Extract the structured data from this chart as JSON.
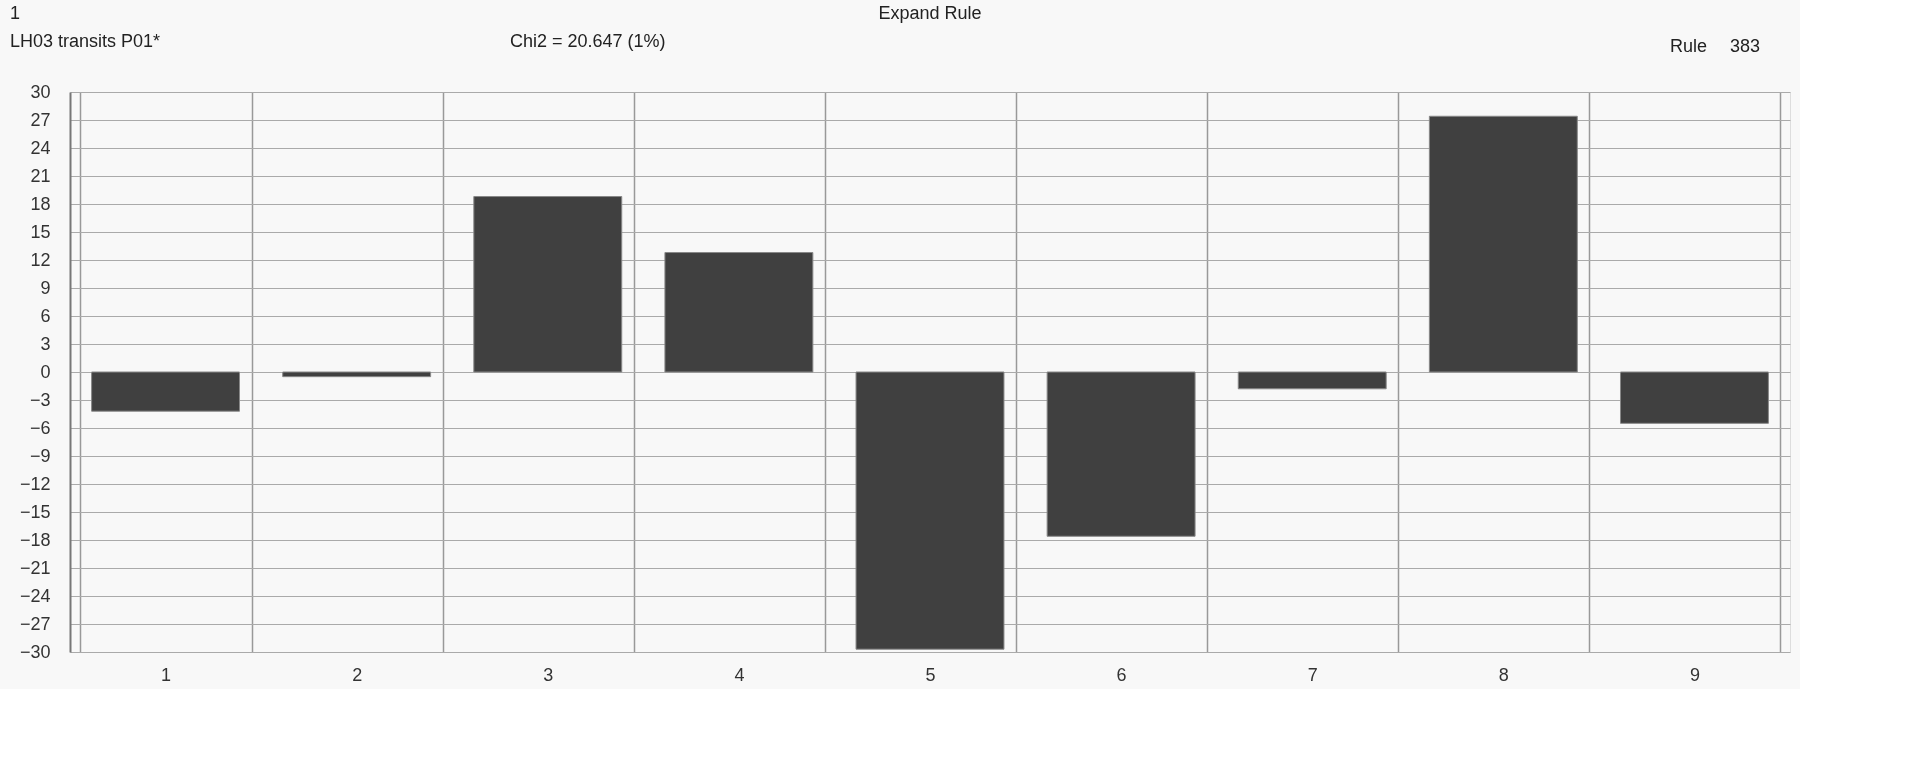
{
  "chart_data": {
    "type": "bar",
    "title": "LH03 transits P01*",
    "subtitle": "Chi2 = 20.647 (1%)",
    "annotations": [
      "Expand Rule",
      "1",
      "Rule",
      "383"
    ],
    "categories": [
      "1",
      "2",
      "3",
      "4",
      "5",
      "6",
      "7",
      "8",
      "9"
    ],
    "values": [
      -4.2,
      -0.5,
      18.8,
      12.8,
      -29.7,
      -17.6,
      -1.8,
      27.4,
      -5.5
    ],
    "color": "#404040",
    "ylim": [
      -30,
      30
    ],
    "yticks": [
      -30,
      -27,
      -24,
      -21,
      -18,
      -15,
      -12,
      -9,
      -6,
      -3,
      0,
      3,
      6,
      9,
      12,
      15,
      18,
      21,
      24,
      27,
      30
    ],
    "grid": true
  }
}
